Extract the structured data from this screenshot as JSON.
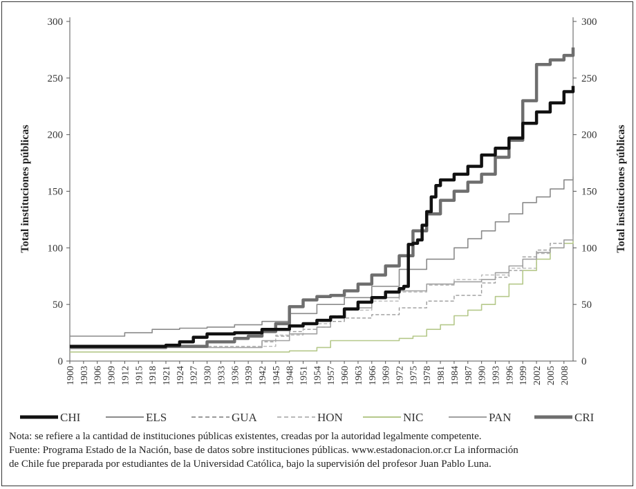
{
  "chart_data": {
    "type": "line",
    "title": "",
    "ylabel_left": "Total instituciones públicas",
    "ylabel_right": "Total instituciones públicas",
    "xlabel": "",
    "ylim": [
      0,
      300
    ],
    "yticks": [
      0,
      50,
      100,
      150,
      200,
      250,
      300
    ],
    "xlim": [
      1900,
      2010
    ],
    "xticks": [
      "1900",
      "1903",
      "1906",
      "1909",
      "1912",
      "1915",
      "1918",
      "1921",
      "1924",
      "1927",
      "1930",
      "1933",
      "1936",
      "1939",
      "1942",
      "1945",
      "1948",
      "1951",
      "1954",
      "1957",
      "1960",
      "1963",
      "1966",
      "1969",
      "1972",
      "1975",
      "1978",
      "1981",
      "1984",
      "1987",
      "1990",
      "1993",
      "1996",
      "1999",
      "2002",
      "2005",
      "2008"
    ],
    "grid": false,
    "legend_position": "bottom",
    "series": [
      {
        "name": "CHI",
        "color": "#111111",
        "style": "solid-thick",
        "x": [
          1900,
          1915,
          1921,
          1924,
          1927,
          1930,
          1936,
          1942,
          1948,
          1951,
          1954,
          1957,
          1960,
          1963,
          1966,
          1969,
          1972,
          1973,
          1974,
          1975,
          1976,
          1977,
          1978,
          1979,
          1980,
          1981,
          1984,
          1987,
          1990,
          1993,
          1996,
          1999,
          2002,
          2005,
          2008,
          2010
        ],
        "values": [
          13,
          13,
          14,
          17,
          21,
          24,
          25,
          28,
          31,
          33,
          36,
          39,
          46,
          52,
          56,
          61,
          64,
          66,
          103,
          104,
          107,
          120,
          132,
          145,
          155,
          160,
          165,
          172,
          182,
          188,
          197,
          210,
          220,
          228,
          238,
          243
        ]
      },
      {
        "name": "ELS",
        "color": "#8a8a8a",
        "style": "solid",
        "x": [
          1900,
          1906,
          1912,
          1918,
          1924,
          1930,
          1936,
          1942,
          1948,
          1954,
          1960,
          1966,
          1972,
          1978,
          1984,
          1987,
          1990,
          1993,
          1996,
          1999,
          2002,
          2005,
          2008,
          2010
        ],
        "values": [
          22,
          22,
          25,
          28,
          29,
          30,
          32,
          35,
          42,
          50,
          56,
          66,
          81,
          90,
          100,
          108,
          115,
          123,
          130,
          140,
          145,
          152,
          160,
          163
        ]
      },
      {
        "name": "GUA",
        "color": "#9a9a9a",
        "style": "dashed",
        "x": [
          1900,
          1939,
          1942,
          1945,
          1948,
          1951,
          1954,
          1957,
          1960,
          1966,
          1972,
          1978,
          1984,
          1990,
          1993,
          1996,
          1999,
          2002,
          2005,
          2008,
          2010
        ],
        "values": [
          13,
          13,
          17,
          22,
          26,
          28,
          30,
          35,
          38,
          41,
          47,
          53,
          58,
          69,
          74,
          80,
          92,
          98,
          104,
          104,
          103
        ]
      },
      {
        "name": "HON",
        "color": "#b8b8b8",
        "style": "dashed",
        "x": [
          1900,
          1939,
          1945,
          1951,
          1957,
          1960,
          1966,
          1972,
          1978,
          1984,
          1990,
          1996,
          2002,
          2005,
          2008,
          2010
        ],
        "values": [
          13,
          13,
          23,
          33,
          40,
          45,
          53,
          61,
          67,
          72,
          76,
          82,
          95,
          100,
          104,
          106
        ]
      },
      {
        "name": "NIC",
        "color": "#b5c88a",
        "style": "solid",
        "x": [
          1900,
          1942,
          1948,
          1954,
          1957,
          1960,
          1966,
          1972,
          1975,
          1978,
          1981,
          1984,
          1987,
          1990,
          1993,
          1996,
          1999,
          2002,
          2005,
          2008,
          2010
        ],
        "values": [
          8,
          8,
          9,
          12,
          18,
          18,
          18,
          20,
          22,
          28,
          32,
          40,
          45,
          50,
          57,
          68,
          80,
          90,
          100,
          104,
          106
        ]
      },
      {
        "name": "PAN",
        "color": "#a0a0a0",
        "style": "solid",
        "x": [
          1900,
          1930,
          1942,
          1948,
          1954,
          1957,
          1960,
          1966,
          1972,
          1978,
          1984,
          1990,
          1993,
          1996,
          1999,
          2002,
          2005,
          2008,
          2010
        ],
        "values": [
          12,
          12,
          18,
          24,
          30,
          39,
          47,
          56,
          62,
          68,
          70,
          72,
          78,
          84,
          90,
          96,
          100,
          107,
          112
        ]
      },
      {
        "name": "CRI",
        "color": "#6e6e6e",
        "style": "solid-thick",
        "x": [
          1900,
          1918,
          1921,
          1924,
          1930,
          1936,
          1939,
          1942,
          1945,
          1948,
          1951,
          1954,
          1957,
          1960,
          1963,
          1966,
          1969,
          1972,
          1975,
          1978,
          1981,
          1984,
          1987,
          1990,
          1993,
          1996,
          1999,
          2002,
          2005,
          2008,
          2010
        ],
        "values": [
          12,
          12,
          13,
          13,
          17,
          20,
          22,
          26,
          33,
          48,
          54,
          57,
          58,
          62,
          68,
          76,
          84,
          93,
          115,
          130,
          142,
          150,
          158,
          165,
          180,
          195,
          230,
          262,
          266,
          270,
          277
        ]
      }
    ]
  },
  "legend": [
    {
      "label": "CHI",
      "color": "#111111",
      "dash": "",
      "width": 5
    },
    {
      "label": "ELS",
      "color": "#8a8a8a",
      "dash": "",
      "width": 2
    },
    {
      "label": "GUA",
      "color": "#9a9a9a",
      "dash": "6,4",
      "width": 2
    },
    {
      "label": "HON",
      "color": "#b8b8b8",
      "dash": "6,4",
      "width": 2
    },
    {
      "label": "NIC",
      "color": "#b5c88a",
      "dash": "",
      "width": 2
    },
    {
      "label": "PAN",
      "color": "#a0a0a0",
      "dash": "",
      "width": 2
    },
    {
      "label": "CRI",
      "color": "#6e6e6e",
      "dash": "",
      "width": 5
    }
  ],
  "notes": {
    "line1": "Nota: se refiere a la cantidad de instituciones públicas existentes, creadas por la autoridad legalmente competente.",
    "line2": "Fuente: Programa Estado de la Nación, base de datos sobre instituciones públicas. www.estadonacion.or.cr La información",
    "line3": "de Chile fue preparada por estudiantes de la Universidad Católica, bajo la supervisión del profesor Juan Pablo Luna."
  }
}
